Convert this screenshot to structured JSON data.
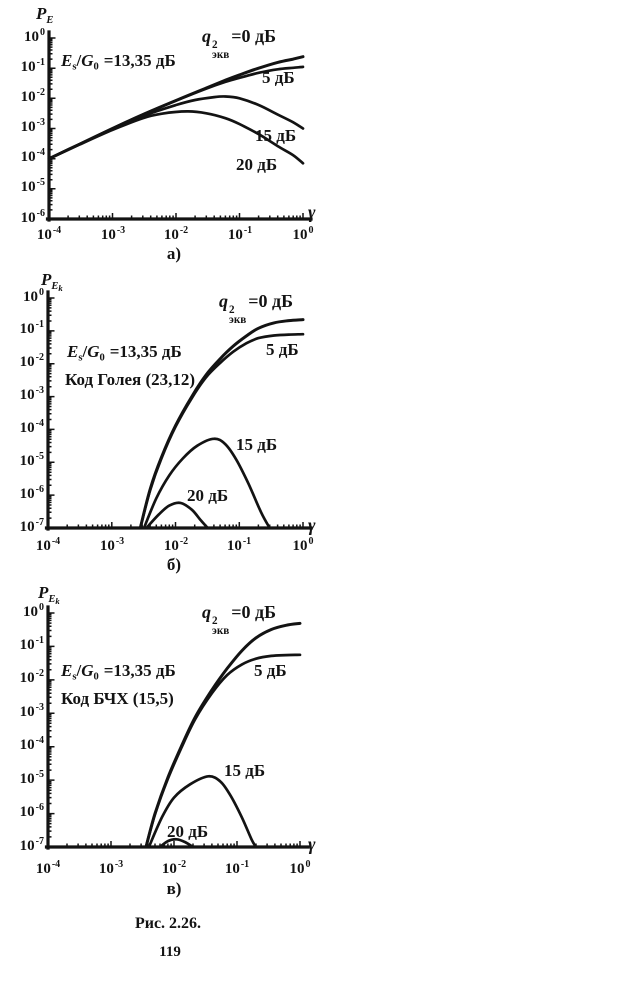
{
  "page": {
    "figure_caption": "Рис. 2.26.",
    "page_number": "119"
  },
  "ink_color": "#131313",
  "chart_data": [
    {
      "type": "line",
      "sub_label": "а)",
      "xlabel": "γ",
      "ylabel": {
        "p": "P",
        "sub": "E",
        "subsub": ""
      },
      "x_tick_exponents": [
        "-4",
        "-3",
        "-2",
        "-1",
        "0"
      ],
      "y_tick_exponents": [
        "0",
        "-1",
        "-2",
        "-3",
        "-4",
        "-5",
        "-6"
      ],
      "xlim": [
        0.0001,
        1
      ],
      "ylim": [
        1e-06,
        1
      ],
      "grid": false,
      "condition": {
        "E": "E",
        "E_sub": "s",
        "slash": "/",
        "G": "G",
        "G_sub": "0",
        "value": "=13,35 дБ"
      },
      "code_label": "",
      "legend": {
        "q": "q",
        "sup": "2",
        "sub": "экв",
        "eq": "=0 дБ"
      },
      "series": [
        {
          "name": "0 дБ",
          "points": [
            [
              0.0001,
              0.0001
            ],
            [
              0.0003,
              0.0003
            ],
            [
              0.001,
              0.001
            ],
            [
              0.003,
              0.0029
            ],
            [
              0.01,
              0.0085
            ],
            [
              0.03,
              0.022
            ],
            [
              0.06,
              0.04
            ],
            [
              0.1,
              0.06
            ],
            [
              0.2,
              0.1
            ],
            [
              0.4,
              0.155
            ],
            [
              0.7,
              0.2
            ],
            [
              1,
              0.24
            ]
          ]
        },
        {
          "name": "5 дБ",
          "points": [
            [
              0.0001,
              0.0001
            ],
            [
              0.0003,
              0.0003
            ],
            [
              0.001,
              0.001
            ],
            [
              0.003,
              0.0029
            ],
            [
              0.01,
              0.0084
            ],
            [
              0.03,
              0.021
            ],
            [
              0.06,
              0.035
            ],
            [
              0.1,
              0.048
            ],
            [
              0.2,
              0.07
            ],
            [
              0.4,
              0.092
            ],
            [
              0.7,
              0.103
            ],
            [
              1,
              0.11
            ]
          ]
        },
        {
          "name": "15 дБ",
          "points": [
            [
              0.0001,
              0.0001
            ],
            [
              0.0003,
              0.0003
            ],
            [
              0.001,
              0.00096
            ],
            [
              0.003,
              0.0026
            ],
            [
              0.01,
              0.006
            ],
            [
              0.02,
              0.0088
            ],
            [
              0.04,
              0.011
            ],
            [
              0.06,
              0.0115
            ],
            [
              0.1,
              0.01
            ],
            [
              0.2,
              0.006
            ],
            [
              0.4,
              0.0029
            ],
            [
              0.7,
              0.0016
            ],
            [
              1,
              0.001
            ]
          ]
        },
        {
          "name": "20 дБ",
          "points": [
            [
              0.0001,
              0.0001
            ],
            [
              0.0003,
              0.00029
            ],
            [
              0.001,
              0.0009
            ],
            [
              0.003,
              0.0022
            ],
            [
              0.006,
              0.0031
            ],
            [
              0.015,
              0.0037
            ],
            [
              0.03,
              0.0032
            ],
            [
              0.06,
              0.0022
            ],
            [
              0.1,
              0.0014
            ],
            [
              0.2,
              0.00065
            ],
            [
              0.4,
              0.00026
            ],
            [
              0.7,
              0.00013
            ],
            [
              1,
              7e-05
            ]
          ]
        }
      ]
    },
    {
      "type": "line",
      "sub_label": "б)",
      "xlabel": "γ",
      "ylabel": {
        "p": "P",
        "sub": "E",
        "subsub": "k"
      },
      "x_tick_exponents": [
        "-4",
        "-3",
        "-2",
        "-1",
        "0"
      ],
      "y_tick_exponents": [
        "0",
        "-1",
        "-2",
        "-3",
        "-4",
        "-5",
        "-6",
        "-7"
      ],
      "xlim": [
        0.0001,
        1
      ],
      "ylim": [
        1e-07,
        1
      ],
      "grid": false,
      "condition": {
        "E": "E",
        "E_sub": "s",
        "slash": "/",
        "G": "G",
        "G_sub": "0",
        "value": "=13,35 дБ"
      },
      "code_label": "Код Голея (23,12)",
      "legend": {
        "q": "q",
        "sup": "2",
        "sub": "экв",
        "eq": "=0 дБ"
      },
      "series": [
        {
          "name": "0 дБ",
          "points": [
            [
              0.0028,
              1e-07
            ],
            [
              0.004,
              1.5e-06
            ],
            [
              0.006,
              1.4e-05
            ],
            [
              0.01,
              0.00013
            ],
            [
              0.018,
              0.001
            ],
            [
              0.03,
              0.0045
            ],
            [
              0.05,
              0.014
            ],
            [
              0.08,
              0.034
            ],
            [
              0.13,
              0.07
            ],
            [
              0.2,
              0.12
            ],
            [
              0.35,
              0.175
            ],
            [
              0.6,
              0.205
            ],
            [
              1,
              0.22
            ]
          ]
        },
        {
          "name": "5 дБ",
          "points": [
            [
              0.0028,
              1e-07
            ],
            [
              0.004,
              1.4e-06
            ],
            [
              0.006,
              1.3e-05
            ],
            [
              0.01,
              0.00012
            ],
            [
              0.018,
              0.0009
            ],
            [
              0.03,
              0.0038
            ],
            [
              0.05,
              0.0105
            ],
            [
              0.08,
              0.023
            ],
            [
              0.13,
              0.042
            ],
            [
              0.2,
              0.06
            ],
            [
              0.35,
              0.072
            ],
            [
              0.6,
              0.077
            ],
            [
              1,
              0.079
            ]
          ]
        },
        {
          "name": "15 дБ",
          "points": [
            [
              0.0032,
              1e-07
            ],
            [
              0.005,
              8e-07
            ],
            [
              0.008,
              4e-06
            ],
            [
              0.013,
              1.3e-05
            ],
            [
              0.022,
              3.2e-05
            ],
            [
              0.04,
              5.2e-05
            ],
            [
              0.06,
              3.6e-05
            ],
            [
              0.09,
              1.2e-05
            ],
            [
              0.14,
              2.2e-06
            ],
            [
              0.22,
              3e-07
            ],
            [
              0.3,
              1e-07
            ]
          ]
        },
        {
          "name": "20 дБ",
          "points": [
            [
              0.0035,
              1e-07
            ],
            [
              0.0055,
              2.6e-07
            ],
            [
              0.008,
              4.8e-07
            ],
            [
              0.012,
              5.8e-07
            ],
            [
              0.018,
              3.6e-07
            ],
            [
              0.025,
              1.7e-07
            ],
            [
              0.032,
              1e-07
            ]
          ]
        }
      ]
    },
    {
      "type": "line",
      "sub_label": "в)",
      "xlabel": "γ",
      "ylabel": {
        "p": "P",
        "sub": "E",
        "subsub": "k"
      },
      "x_tick_exponents": [
        "-4",
        "-3",
        "-2",
        "-1",
        "0"
      ],
      "y_tick_exponents": [
        "0",
        "-1",
        "-2",
        "-3",
        "-4",
        "-5",
        "-6",
        "-7"
      ],
      "xlim": [
        0.0001,
        1
      ],
      "ylim": [
        1e-07,
        1
      ],
      "grid": false,
      "condition": {
        "E": "E",
        "E_sub": "s",
        "slash": "/",
        "G": "G",
        "G_sub": "0",
        "value": "=13,35 дБ"
      },
      "code_label": "Код БЧХ (15,5)",
      "legend": {
        "q": "q",
        "sup": "2",
        "sub": "экв",
        "eq": "=0 дБ"
      },
      "series": [
        {
          "name": "0 дБ",
          "points": [
            [
              0.0036,
              1e-07
            ],
            [
              0.005,
              1e-06
            ],
            [
              0.008,
              1.2e-05
            ],
            [
              0.013,
              0.0001
            ],
            [
              0.022,
              0.0008
            ],
            [
              0.04,
              0.005
            ],
            [
              0.07,
              0.022
            ],
            [
              0.12,
              0.075
            ],
            [
              0.2,
              0.18
            ],
            [
              0.35,
              0.32
            ],
            [
              0.6,
              0.43
            ],
            [
              1,
              0.49
            ]
          ]
        },
        {
          "name": "5 дБ",
          "points": [
            [
              0.0036,
              1e-07
            ],
            [
              0.005,
              9.5e-07
            ],
            [
              0.008,
              1.1e-05
            ],
            [
              0.013,
              9e-05
            ],
            [
              0.022,
              0.0007
            ],
            [
              0.04,
              0.004
            ],
            [
              0.07,
              0.014
            ],
            [
              0.12,
              0.029
            ],
            [
              0.2,
              0.043
            ],
            [
              0.35,
              0.052
            ],
            [
              0.6,
              0.055
            ],
            [
              1,
              0.056
            ]
          ]
        },
        {
          "name": "15 дБ",
          "points": [
            [
              0.004,
              1e-07
            ],
            [
              0.0065,
              8e-07
            ],
            [
              0.01,
              3e-06
            ],
            [
              0.018,
              7.5e-06
            ],
            [
              0.035,
              1.3e-05
            ],
            [
              0.055,
              9e-06
            ],
            [
              0.08,
              3.3e-06
            ],
            [
              0.12,
              7.5e-07
            ],
            [
              0.17,
              1.7e-07
            ],
            [
              0.2,
              1e-07
            ]
          ]
        },
        {
          "name": "20 дБ",
          "points": [
            [
              0.006,
              1e-07
            ],
            [
              0.008,
              1.5e-07
            ],
            [
              0.011,
              1.7e-07
            ],
            [
              0.015,
              1.4e-07
            ],
            [
              0.02,
              1e-07
            ]
          ]
        }
      ]
    }
  ]
}
